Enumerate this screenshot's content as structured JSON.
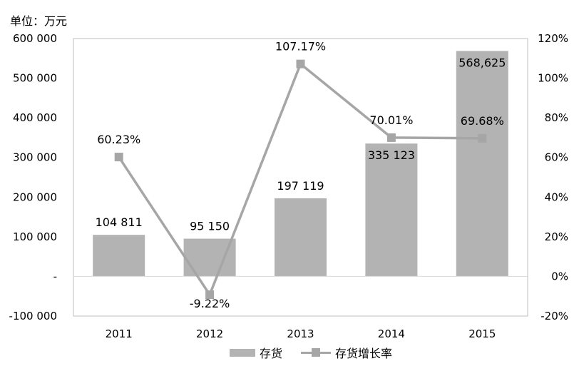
{
  "unit_label": "单位：万元",
  "chart_data": {
    "type": "bar",
    "categories": [
      "2011",
      "2012",
      "2013",
      "2014",
      "2015"
    ],
    "series": [
      {
        "name": "存货",
        "type": "bar",
        "axis": "left",
        "values": [
          104811,
          95150,
          197119,
          335123,
          568625
        ],
        "labels": [
          "104 811",
          "95 150",
          "197 119",
          "335 123",
          "568,625"
        ],
        "color": "#b3b3b3"
      },
      {
        "name": "存货增长率",
        "type": "line",
        "axis": "right",
        "values": [
          60.23,
          -9.22,
          107.17,
          70.01,
          69.68
        ],
        "labels": [
          "60.23%",
          "-9.22%",
          "107.17%",
          "70.01%",
          "69.68%"
        ],
        "color": "#a6a6a6",
        "marker": "square"
      }
    ],
    "y_left": {
      "ylim": [
        -100000,
        600000
      ],
      "ticks": [
        -100000,
        0,
        100000,
        200000,
        300000,
        400000,
        500000,
        600000
      ],
      "tick_labels": [
        "-100 000",
        "-",
        "100 000",
        "200 000",
        "300 000",
        "400 000",
        "500 000",
        "600 000"
      ]
    },
    "y_right": {
      "ylim": [
        -20,
        120
      ],
      "ticks": [
        -20,
        0,
        20,
        40,
        60,
        80,
        100,
        120
      ],
      "tick_labels": [
        "-20%",
        "0%",
        "20%",
        "40%",
        "60%",
        "80%",
        "100%",
        "120%"
      ]
    },
    "grid": false,
    "legend": "bottom"
  }
}
